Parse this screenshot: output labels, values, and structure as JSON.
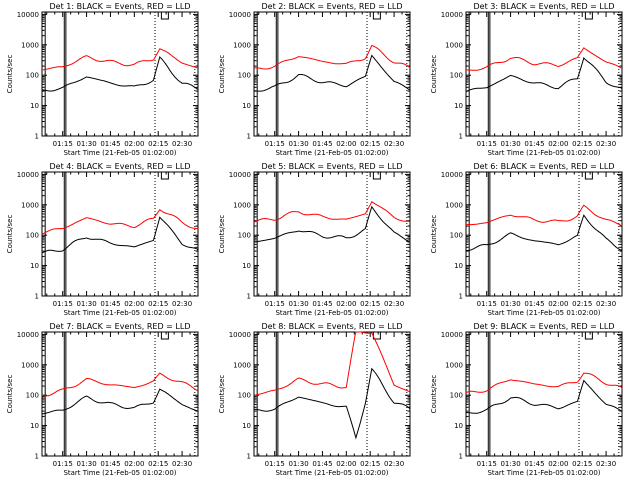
{
  "figure": {
    "x_axis_title": "Start Time (21-Feb-05 01:02:00)",
    "y_axis_title": "Counts/sec",
    "x_tick_labels": [
      "01:15",
      "01:30",
      "01:45",
      "02:00",
      "02:15",
      "02:30"
    ],
    "y_tick_labels": [
      "1",
      "10",
      "100",
      "1000",
      "10000"
    ],
    "colors": {
      "events": "#000000",
      "lld": "#ff0000"
    }
  },
  "chart_data": [
    {
      "type": "line",
      "title": "Det 1: BLACK = Events, RED = LLD",
      "xlabel": "Start Time (21-Feb-05 01:02:00)",
      "ylabel": "Counts/sec",
      "xlim": [
        "01:02",
        "02:40"
      ],
      "ylim": [
        1,
        12000
      ],
      "yscale": "log",
      "x": [
        "01:02",
        "01:15",
        "01:30",
        "01:45",
        "02:00",
        "02:12",
        "02:16",
        "02:30",
        "02:40"
      ],
      "series": [
        {
          "name": "Events",
          "color": "#000000",
          "values": [
            30,
            38,
            90,
            55,
            40,
            70,
            350,
            55,
            35
          ]
        },
        {
          "name": "LLD",
          "color": "#ff0000",
          "values": [
            150,
            190,
            400,
            270,
            220,
            350,
            750,
            260,
            170
          ]
        }
      ]
    },
    {
      "type": "line",
      "title": "Det 2: BLACK = Events, RED = LLD",
      "xlabel": "Start Time (21-Feb-05 01:02:00)",
      "ylabel": "Counts/sec",
      "xlim": [
        "01:02",
        "02:40"
      ],
      "ylim": [
        1,
        12000
      ],
      "yscale": "log",
      "x": [
        "01:02",
        "01:15",
        "01:30",
        "01:45",
        "02:00",
        "02:12",
        "02:16",
        "02:30",
        "02:40"
      ],
      "series": [
        {
          "name": "Events",
          "color": "#000000",
          "values": [
            30,
            40,
            100,
            60,
            45,
            90,
            450,
            60,
            35
          ]
        },
        {
          "name": "LLD",
          "color": "#ff0000",
          "values": [
            150,
            200,
            430,
            280,
            230,
            380,
            900,
            280,
            170
          ]
        }
      ]
    },
    {
      "type": "line",
      "title": "Det 3: BLACK = Events, RED = LLD",
      "xlabel": "Start Time (21-Feb-05 01:02:00)",
      "ylabel": "Counts/sec",
      "xlim": [
        "01:02",
        "02:40"
      ],
      "ylim": [
        1,
        12000
      ],
      "yscale": "log",
      "x": [
        "01:02",
        "01:15",
        "01:30",
        "01:45",
        "02:00",
        "02:12",
        "02:16",
        "02:30",
        "02:40"
      ],
      "series": [
        {
          "name": "Events",
          "color": "#000000",
          "values": [
            30,
            40,
            95,
            55,
            40,
            80,
            420,
            60,
            35
          ]
        },
        {
          "name": "LLD",
          "color": "#ff0000",
          "values": [
            140,
            180,
            380,
            250,
            210,
            360,
            800,
            270,
            170
          ]
        }
      ]
    },
    {
      "type": "line",
      "title": "Det 4: BLACK = Events, RED = LLD",
      "xlabel": "Start Time (21-Feb-05 01:02:00)",
      "ylabel": "Counts/sec",
      "xlim": [
        "01:02",
        "02:40"
      ],
      "ylim": [
        1,
        12000
      ],
      "yscale": "log",
      "x": [
        "01:02",
        "01:15",
        "01:30",
        "01:45",
        "02:00",
        "02:12",
        "02:16",
        "02:30",
        "02:40"
      ],
      "series": [
        {
          "name": "Events",
          "color": "#000000",
          "values": [
            25,
            35,
            90,
            55,
            40,
            70,
            400,
            55,
            30
          ]
        },
        {
          "name": "LLD",
          "color": "#ff0000",
          "values": [
            120,
            170,
            370,
            240,
            200,
            340,
            780,
            260,
            160
          ]
        }
      ]
    },
    {
      "type": "line",
      "title": "Det 5: BLACK = Events, RED = LLD",
      "xlabel": "Start Time (21-Feb-05 01:02:00)",
      "ylabel": "Counts/sec",
      "xlim": [
        "01:02",
        "02:40"
      ],
      "ylim": [
        1,
        12000
      ],
      "yscale": "log",
      "x": [
        "01:02",
        "01:15",
        "01:30",
        "01:45",
        "02:00",
        "02:12",
        "02:16",
        "02:30",
        "02:40"
      ],
      "series": [
        {
          "name": "Events",
          "color": "#000000",
          "values": [
            60,
            80,
            150,
            95,
            80,
            150,
            800,
            120,
            60
          ]
        },
        {
          "name": "LLD",
          "color": "#ff0000",
          "values": [
            280,
            350,
            600,
            400,
            320,
            520,
            1300,
            400,
            260
          ]
        }
      ]
    },
    {
      "type": "line",
      "title": "Det 6: BLACK = Events, RED = LLD",
      "xlabel": "Start Time (21-Feb-05 01:02:00)",
      "ylabel": "Counts/sec",
      "xlim": [
        "01:02",
        "02:40"
      ],
      "ylim": [
        1,
        12000
      ],
      "yscale": "log",
      "x": [
        "01:02",
        "01:15",
        "01:30",
        "01:45",
        "02:00",
        "02:12",
        "02:16",
        "02:30",
        "02:40"
      ],
      "series": [
        {
          "name": "Events",
          "color": "#000000",
          "values": [
            35,
            45,
            110,
            65,
            50,
            90,
            450,
            70,
            35
          ]
        },
        {
          "name": "LLD",
          "color": "#ff0000",
          "values": [
            220,
            260,
            480,
            320,
            270,
            420,
            850,
            320,
            210
          ]
        }
      ]
    },
    {
      "type": "line",
      "title": "Det 7: BLACK = Events, RED = LLD",
      "xlabel": "Start Time (21-Feb-05 01:02:00)",
      "ylabel": "Counts/sec",
      "xlim": [
        "01:02",
        "02:40"
      ],
      "ylim": [
        1,
        12000
      ],
      "yscale": "log",
      "x": [
        "01:02",
        "01:15",
        "01:30",
        "01:45",
        "02:00",
        "02:12",
        "02:16",
        "02:30",
        "02:40"
      ],
      "series": [
        {
          "name": "Events",
          "color": "#000000",
          "values": [
            25,
            32,
            85,
            50,
            38,
            60,
            160,
            50,
            30
          ]
        },
        {
          "name": "LLD",
          "color": "#ff0000",
          "values": [
            100,
            140,
            330,
            220,
            180,
            280,
            500,
            250,
            160
          ]
        }
      ]
    },
    {
      "type": "line",
      "title": "Det 8: BLACK = Events, RED = LLD",
      "xlabel": "Start Time (21-Feb-05 01:02:00)",
      "ylabel": "Counts/sec",
      "xlim": [
        "01:02",
        "02:40"
      ],
      "ylim": [
        1,
        12000
      ],
      "yscale": "log",
      "x": [
        "01:02",
        "01:15",
        "01:30",
        "01:45",
        "02:00",
        "02:06",
        "02:12",
        "02:16",
        "02:30",
        "02:40"
      ],
      "series": [
        {
          "name": "Events",
          "color": "#000000",
          "values": [
            30,
            35,
            90,
            55,
            40,
            4,
            60,
            700,
            60,
            35
          ]
        },
        {
          "name": "LLD",
          "color": "#ff0000",
          "values": [
            100,
            140,
            330,
            230,
            190,
            12000,
            12000,
            12000,
            220,
            130
          ]
        }
      ]
    },
    {
      "type": "line",
      "title": "Det 9: BLACK = Events, RED = LLD",
      "xlabel": "Start Time (21-Feb-05 01:02:00)",
      "ylabel": "Counts/sec",
      "xlim": [
        "01:02",
        "02:40"
      ],
      "ylim": [
        1,
        12000
      ],
      "yscale": "log",
      "x": [
        "01:02",
        "01:15",
        "01:30",
        "01:45",
        "02:00",
        "02:12",
        "02:16",
        "02:30",
        "02:40"
      ],
      "series": [
        {
          "name": "Events",
          "color": "#000000",
          "values": [
            25,
            32,
            85,
            52,
            38,
            60,
            300,
            50,
            30
          ]
        },
        {
          "name": "LLD",
          "color": "#ff0000",
          "values": [
            110,
            150,
            340,
            230,
            190,
            300,
            550,
            260,
            160
          ]
        }
      ]
    }
  ]
}
